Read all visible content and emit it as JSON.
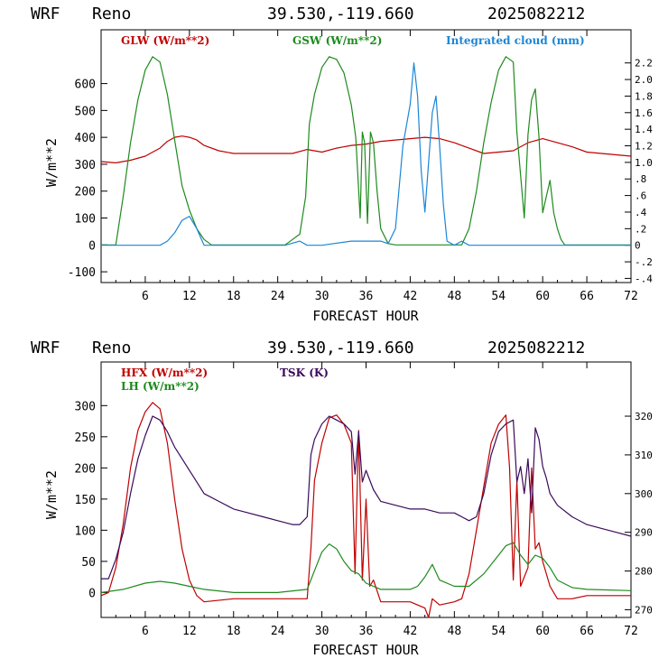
{
  "headers": [
    {
      "model": "WRF",
      "site": "Reno",
      "coords": "39.530,-119.660",
      "run": "2025082212"
    },
    {
      "model": "WRF",
      "site": "Reno",
      "coords": "39.530,-119.660",
      "run": "2025082212"
    }
  ],
  "chart_data": [
    {
      "type": "line",
      "xlabel": "FORECAST HOUR",
      "ylabel": "W/m**2",
      "xlim": [
        0,
        72
      ],
      "ylim": [
        -140,
        800
      ],
      "y2lim": [
        -0.45,
        2.6
      ],
      "xticks": [
        6,
        12,
        18,
        24,
        30,
        36,
        42,
        48,
        54,
        60,
        66,
        72
      ],
      "yticks": [
        -100,
        0,
        100,
        200,
        300,
        400,
        500,
        600
      ],
      "y2ticks": [
        -0.4,
        -0.2,
        0,
        0.2,
        0.4,
        0.6,
        0.8,
        1.0,
        1.2,
        1.4,
        1.6,
        1.8,
        2.0,
        2.2
      ],
      "y2tick_labels": [
        "-.4",
        "-.2",
        "0",
        ".2",
        ".4",
        ".6",
        ".8",
        "1.0",
        "1.2",
        "1.4",
        "1.6",
        "1.8",
        "2.0",
        "2.2"
      ],
      "series": [
        {
          "name": "GLW (W/m**2)",
          "axis": "left",
          "color": "#c00000",
          "x": [
            0,
            2,
            4,
            6,
            7,
            8,
            9,
            10,
            11,
            12,
            13,
            14,
            16,
            18,
            20,
            22,
            24,
            26,
            28,
            30,
            32,
            34,
            36,
            38,
            40,
            42,
            44,
            46,
            48,
            50,
            52,
            54,
            56,
            58,
            60,
            62,
            64,
            66,
            68,
            70,
            72
          ],
          "y": [
            310,
            305,
            315,
            330,
            345,
            360,
            385,
            400,
            405,
            400,
            390,
            370,
            350,
            340,
            340,
            340,
            340,
            340,
            355,
            345,
            360,
            370,
            375,
            385,
            390,
            395,
            400,
            395,
            380,
            360,
            340,
            345,
            350,
            380,
            395,
            380,
            365,
            345,
            340,
            335,
            330
          ]
        },
        {
          "name": "GSW (W/m**2)",
          "axis": "left",
          "color": "#1e8a1e",
          "x": [
            0,
            1,
            2,
            3,
            4,
            5,
            6,
            7,
            8,
            9,
            10,
            11,
            12,
            13,
            14,
            15,
            25,
            26,
            27,
            27.8,
            28.3,
            29,
            30,
            31,
            32,
            33,
            34,
            34.6,
            35.2,
            35.5,
            35.8,
            36.2,
            36.6,
            37,
            37.5,
            38,
            39,
            40,
            41,
            49,
            50,
            51,
            52,
            53,
            54,
            55,
            56,
            56.5,
            57,
            57.5,
            58,
            58.5,
            59,
            59.5,
            60,
            60.5,
            61,
            61.5,
            62,
            62.5,
            63,
            72
          ],
          "y": [
            0,
            0,
            0,
            180,
            380,
            540,
            650,
            700,
            680,
            560,
            390,
            220,
            130,
            60,
            20,
            0,
            0,
            20,
            40,
            180,
            450,
            560,
            660,
            700,
            690,
            640,
            520,
            400,
            100,
            420,
            380,
            80,
            420,
            380,
            200,
            60,
            5,
            0,
            0,
            0,
            60,
            200,
            380,
            530,
            650,
            700,
            680,
            420,
            260,
            100,
            410,
            540,
            580,
            400,
            120,
            180,
            240,
            120,
            60,
            20,
            0,
            0
          ]
        },
        {
          "name": "Integrated cloud (mm)",
          "axis": "right",
          "color": "#1b86d6",
          "x": [
            0,
            8,
            9,
            10,
            11,
            12,
            13,
            14,
            25,
            27,
            28,
            30,
            34,
            36,
            38,
            39,
            40,
            41,
            42,
            42.5,
            43,
            43.5,
            44,
            44.5,
            45,
            45.5,
            46,
            46.5,
            47,
            48,
            49,
            50,
            72
          ],
          "y": [
            0,
            0,
            0.05,
            0.15,
            0.3,
            0.35,
            0.2,
            0,
            0,
            0.05,
            0,
            0,
            0.05,
            0.05,
            0.05,
            0.02,
            0.2,
            1.2,
            1.7,
            2.2,
            1.8,
            0.9,
            0.4,
            1.0,
            1.6,
            1.8,
            1.2,
            0.5,
            0.05,
            0,
            0.05,
            0,
            0
          ]
        }
      ]
    },
    {
      "type": "line",
      "xlabel": "FORECAST HOUR",
      "ylabel": "W/m**2",
      "xlim": [
        0,
        72
      ],
      "ylim": [
        -40,
        370
      ],
      "y2lim": [
        268,
        334
      ],
      "xticks": [
        6,
        12,
        18,
        24,
        30,
        36,
        42,
        48,
        54,
        60,
        66,
        72
      ],
      "yticks": [
        0,
        50,
        100,
        150,
        200,
        250,
        300
      ],
      "y2ticks": [
        270,
        280,
        290,
        300,
        310,
        320
      ],
      "series": [
        {
          "name": "HFX (W/m**2)",
          "axis": "left",
          "color": "#c00000",
          "x": [
            0,
            1,
            2,
            3,
            4,
            5,
            6,
            7,
            8,
            9,
            10,
            11,
            12,
            13,
            14,
            18,
            24,
            28,
            28.5,
            29,
            30,
            31,
            32,
            33,
            34,
            34.5,
            35,
            35.5,
            36,
            36.5,
            37,
            38,
            42,
            44,
            44.5,
            45,
            46,
            48,
            49,
            50,
            51,
            52,
            53,
            54,
            55,
            55.5,
            56,
            56.5,
            57,
            58,
            58.5,
            59,
            59.5,
            60,
            61,
            62,
            64,
            66,
            72
          ],
          "y": [
            -5,
            0,
            40,
            110,
            200,
            260,
            290,
            305,
            295,
            240,
            150,
            70,
            20,
            -5,
            -15,
            -10,
            -10,
            -10,
            70,
            180,
            240,
            280,
            285,
            270,
            240,
            30,
            260,
            20,
            150,
            10,
            20,
            -15,
            -15,
            -25,
            -40,
            -10,
            -20,
            -15,
            -10,
            30,
            100,
            170,
            240,
            270,
            285,
            200,
            20,
            180,
            10,
            40,
            200,
            70,
            80,
            50,
            10,
            -10,
            -10,
            -5,
            -5
          ]
        },
        {
          "name": "LH (W/m**2)",
          "axis": "left",
          "color": "#1e8a1e",
          "x": [
            0,
            3,
            6,
            8,
            10,
            12,
            14,
            18,
            24,
            28,
            29,
            30,
            31,
            32,
            33,
            34,
            35,
            36,
            38,
            42,
            43,
            44,
            45,
            46,
            48,
            50,
            52,
            54,
            55,
            56,
            57,
            58,
            59,
            60,
            61,
            62,
            64,
            66,
            72
          ],
          "y": [
            0,
            5,
            15,
            18,
            15,
            10,
            5,
            0,
            0,
            5,
            35,
            65,
            78,
            70,
            50,
            35,
            30,
            15,
            5,
            5,
            10,
            25,
            45,
            20,
            10,
            10,
            30,
            60,
            75,
            80,
            60,
            45,
            60,
            55,
            40,
            20,
            8,
            5,
            3
          ]
        },
        {
          "name": "TSK (K)",
          "axis": "right",
          "color": "#3a0a5a",
          "x": [
            0,
            1,
            2,
            3,
            4,
            5,
            6,
            7,
            8,
            9,
            10,
            11,
            12,
            13,
            14,
            16,
            18,
            20,
            22,
            24,
            26,
            27,
            28,
            28.5,
            29,
            30,
            31,
            32,
            33,
            34,
            34.5,
            35,
            35.5,
            36,
            37,
            38,
            40,
            42,
            44,
            46,
            48,
            49,
            50,
            51,
            52,
            53,
            54,
            55,
            56,
            56.5,
            57,
            57.5,
            58,
            58.5,
            59,
            59.5,
            60,
            60.5,
            61,
            62,
            64,
            66,
            68,
            70,
            72
          ],
          "y": [
            278,
            278,
            283,
            290,
            300,
            309,
            315,
            320,
            319,
            316,
            312,
            309,
            306,
            303,
            300,
            298,
            296,
            295,
            294,
            293,
            292,
            292,
            294,
            310,
            314,
            318,
            320,
            319,
            318,
            316,
            305,
            316,
            303,
            306,
            301,
            298,
            297,
            296,
            296,
            295,
            295,
            294,
            293,
            294,
            300,
            310,
            316,
            318,
            319,
            303,
            307,
            300,
            309,
            295,
            317,
            314,
            307,
            304,
            300,
            297,
            294,
            292,
            291,
            290,
            289
          ]
        }
      ]
    }
  ]
}
